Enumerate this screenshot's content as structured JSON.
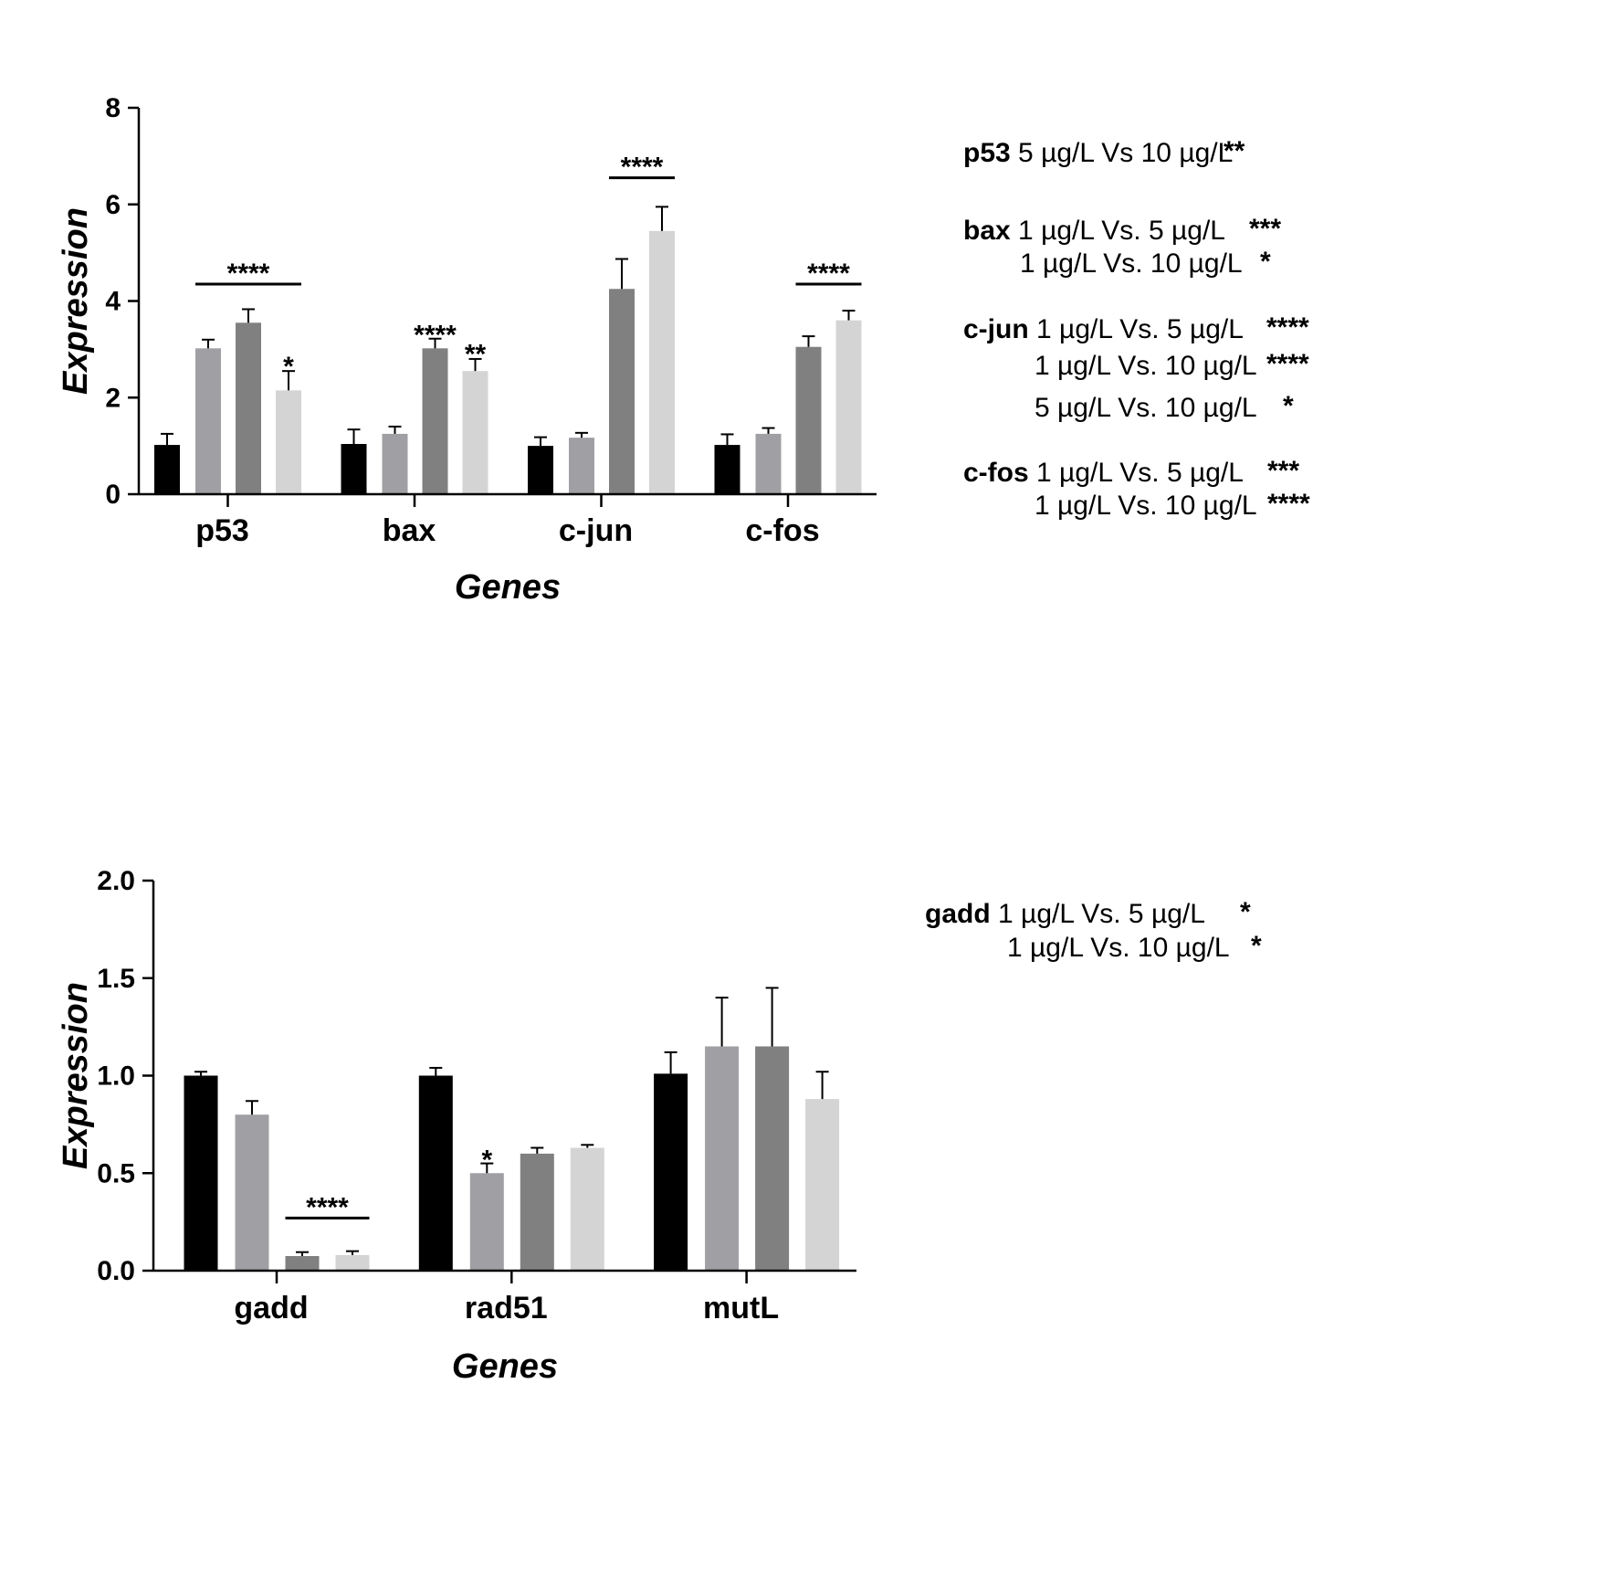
{
  "colors": {
    "series": [
      "#000000",
      "#a0a0a4",
      "#808080",
      "#d4d4d4"
    ],
    "axis": "#000000",
    "background": "#ffffff"
  },
  "chart_data": [
    {
      "type": "bar",
      "title": "",
      "xlabel": "Genes",
      "ylabel": "Expression",
      "categories": [
        "p53",
        "bax",
        "c-jun",
        "c-fos"
      ],
      "ylim": [
        0,
        8
      ],
      "yticks": [
        "0",
        "2",
        "4",
        "6",
        "8"
      ],
      "grid": false,
      "legend": "none",
      "series": [
        {
          "values": [
            1.02,
            1.04,
            1.0,
            1.02
          ],
          "errors": [
            0.23,
            0.3,
            0.18,
            0.22
          ]
        },
        {
          "values": [
            3.02,
            1.25,
            1.17,
            1.25
          ],
          "errors": [
            0.18,
            0.15,
            0.1,
            0.12
          ]
        },
        {
          "values": [
            3.55,
            3.02,
            4.25,
            3.05
          ],
          "errors": [
            0.28,
            0.2,
            0.62,
            0.22
          ]
        },
        {
          "values": [
            2.15,
            2.55,
            5.45,
            3.6
          ],
          "errors": [
            0.4,
            0.25,
            0.5,
            0.2
          ]
        }
      ],
      "significance": [
        {
          "label": "****",
          "category": 0,
          "from_series": 1,
          "to_series": 3,
          "y": 4.35,
          "bracket": true
        },
        {
          "label": "*",
          "category": 0,
          "series": 3,
          "y": 2.65,
          "bracket": false
        },
        {
          "label": "****",
          "category": 1,
          "series": 2,
          "y": 3.3,
          "bracket": false
        },
        {
          "label": "**",
          "category": 1,
          "series": 3,
          "y": 2.9,
          "bracket": false
        },
        {
          "label": "****",
          "category": 2,
          "from_series": 2,
          "to_series": 3,
          "y": 6.55,
          "bracket": true
        },
        {
          "label": "****",
          "category": 3,
          "from_series": 2,
          "to_series": 3,
          "y": 4.35,
          "bracket": true
        }
      ],
      "notes": [
        {
          "gene": "p53",
          "comparison": "5 µg/L Vs 10 µg/L",
          "stars": "**"
        },
        {
          "gene": "bax",
          "comparison": "1 µg/L Vs. 5 µg/L",
          "stars": "***"
        },
        {
          "gene": "",
          "comparison": "1 µg/L Vs. 10 µg/L",
          "stars": "*"
        },
        {
          "gene": "c-jun",
          "comparison": "1 µg/L Vs. 5 µg/L",
          "stars": "****"
        },
        {
          "gene": "",
          "comparison": "1 µg/L Vs. 10 µg/L",
          "stars": "****"
        },
        {
          "gene": "",
          "comparison": "5 µg/L Vs. 10 µg/L",
          "stars": "*"
        },
        {
          "gene": "c-fos",
          "comparison": "1 µg/L Vs. 5 µg/L",
          "stars": "***"
        },
        {
          "gene": "",
          "comparison": "1 µg/L Vs. 10 µg/L",
          "stars": "****"
        }
      ]
    },
    {
      "type": "bar",
      "title": "",
      "xlabel": "Genes",
      "ylabel": "Expression",
      "categories": [
        "gadd",
        "rad51",
        "mutL"
      ],
      "ylim": [
        0,
        2
      ],
      "yticks": [
        "0.0",
        "0.5",
        "1.0",
        "1.5",
        "2.0"
      ],
      "grid": false,
      "legend": "none",
      "series": [
        {
          "values": [
            1.0,
            1.0,
            1.01
          ],
          "errors": [
            0.02,
            0.04,
            0.11
          ]
        },
        {
          "values": [
            0.8,
            0.5,
            1.15
          ],
          "errors": [
            0.07,
            0.05,
            0.25
          ]
        },
        {
          "values": [
            0.075,
            0.6,
            1.15
          ],
          "errors": [
            0.02,
            0.03,
            0.3
          ]
        },
        {
          "values": [
            0.08,
            0.63,
            0.88
          ],
          "errors": [
            0.02,
            0.015,
            0.14
          ]
        }
      ],
      "significance": [
        {
          "label": "****",
          "category": 0,
          "from_series": 2,
          "to_series": 3,
          "y": 0.27,
          "bracket": true
        },
        {
          "label": "*",
          "category": 1,
          "series": 1,
          "y": 0.57,
          "bracket": false
        }
      ],
      "notes": [
        {
          "gene": "gadd",
          "comparison": "1 µg/L Vs. 5 µg/L",
          "stars": "*"
        },
        {
          "gene": "",
          "comparison": "1 µg/L Vs. 10 µg/L",
          "stars": "*"
        }
      ]
    }
  ]
}
